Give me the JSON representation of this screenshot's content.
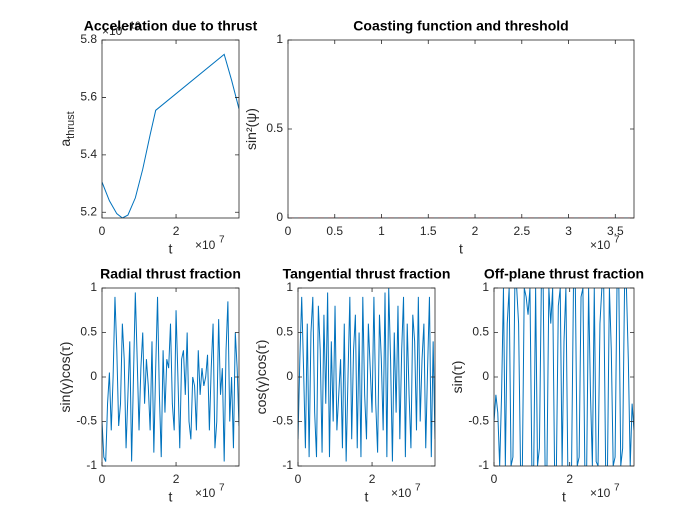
{
  "chart_data": [
    {
      "type": "line",
      "title": "Acceleration due to thrust",
      "xlabel": "t",
      "ylabel": "a",
      "ylabel_subscript": "thrust",
      "x_multiplier": "×10",
      "x_exponent": 7,
      "y_multiplier": "×10",
      "y_exponent": -16,
      "xlim": [
        0,
        3.7
      ],
      "ylim": [
        5.18,
        5.8
      ],
      "xticks": [
        0,
        2
      ],
      "yticks": [
        5.2,
        5.4,
        5.6,
        5.8
      ],
      "x": [
        0,
        0.2,
        0.4,
        0.55,
        0.7,
        0.9,
        1.1,
        1.3,
        1.45,
        3.3,
        3.5,
        3.7
      ],
      "series": [
        {
          "color": "#0072bd",
          "values": [
            5.305,
            5.24,
            5.195,
            5.18,
            5.19,
            5.25,
            5.35,
            5.47,
            5.555,
            5.75,
            5.66,
            5.56
          ]
        }
      ]
    },
    {
      "type": "line",
      "title": "Coasting function and threshold",
      "xlabel": "t",
      "ylabel": "sin²(ψ)",
      "x_multiplier": "×10",
      "x_exponent": 7,
      "xlim": [
        0,
        3.7
      ],
      "ylim": [
        0,
        1
      ],
      "xticks": [
        0,
        0.5,
        1,
        1.5,
        2,
        2.5,
        3,
        3.5
      ],
      "yticks": [
        0,
        0.5,
        1
      ],
      "x": [
        0,
        3.7
      ],
      "series": [
        {
          "color": "#0072bd",
          "style": "solid",
          "values": [
            0,
            0
          ]
        },
        {
          "color": "#ff0000",
          "style": "dashed",
          "values": [
            0,
            0
          ]
        }
      ]
    },
    {
      "type": "line",
      "title": "Radial thrust fraction",
      "xlabel": "t",
      "ylabel": "sin(γ)cos(τ)",
      "x_multiplier": "×10",
      "x_exponent": 7,
      "xlim": [
        0,
        3.7
      ],
      "ylim": [
        -1,
        1
      ],
      "xticks": [
        0,
        2
      ],
      "yticks": [
        -1,
        -0.5,
        0,
        0.5,
        1
      ],
      "x": [
        0,
        0.05,
        0.1,
        0.15,
        0.2,
        0.25,
        0.3,
        0.35,
        0.4,
        0.45,
        0.5,
        0.55,
        0.6,
        0.65,
        0.7,
        0.75,
        0.8,
        0.85,
        0.9,
        0.95,
        1,
        1.05,
        1.1,
        1.15,
        1.2,
        1.25,
        1.3,
        1.35,
        1.4,
        1.45,
        1.5,
        1.55,
        1.6,
        1.65,
        1.7,
        1.75,
        1.8,
        1.85,
        1.9,
        1.95,
        2,
        2.05,
        2.1,
        2.15,
        2.2,
        2.25,
        2.3,
        2.35,
        2.4,
        2.45,
        2.5,
        2.55,
        2.6,
        2.65,
        2.7,
        2.75,
        2.8,
        2.85,
        2.9,
        2.95,
        3,
        3.05,
        3.1,
        3.15,
        3.2,
        3.25,
        3.3,
        3.35,
        3.4,
        3.45,
        3.5,
        3.55,
        3.6,
        3.65,
        3.7
      ],
      "series": [
        {
          "color": "#0072bd",
          "values": [
            -0.5,
            -0.9,
            -0.95,
            -0.3,
            0.05,
            -0.6,
            0.0,
            0.9,
            0.3,
            -0.55,
            -0.3,
            0.6,
            0.2,
            -0.8,
            -0.2,
            0.4,
            -0.95,
            0.0,
            0.95,
            0.2,
            -0.6,
            0.1,
            0.5,
            -0.3,
            0.2,
            -0.1,
            -0.6,
            0.4,
            -0.85,
            0.1,
            0.9,
            -0.2,
            -0.9,
            0.3,
            -0.4,
            0.2,
            0.1,
            0.6,
            -0.3,
            -0.6,
            0.75,
            0.0,
            -0.8,
            0.2,
            0.3,
            -0.2,
            0.5,
            -0.5,
            -0.7,
            0.0,
            -0.1,
            -0.6,
            0.3,
            -0.2,
            0.1,
            -0.1,
            0.0,
            0.25,
            -0.6,
            0.1,
            0.6,
            -0.8,
            -0.5,
            0.65,
            -0.2,
            0.1,
            -0.95,
            0.3,
            0.85,
            -0.5,
            0.0,
            -0.8,
            0.5,
            0.1,
            -0.55
          ]
        }
      ]
    },
    {
      "type": "line",
      "title": "Tangential thrust fraction",
      "xlabel": "t",
      "ylabel": "cos(γ)cos(τ)",
      "x_multiplier": "×10",
      "x_exponent": 7,
      "xlim": [
        0,
        3.7
      ],
      "ylim": [
        -1,
        1
      ],
      "xticks": [
        0,
        2
      ],
      "yticks": [
        -1,
        -0.5,
        0,
        0.5,
        1
      ],
      "x": [
        0,
        0.05,
        0.1,
        0.15,
        0.2,
        0.25,
        0.3,
        0.35,
        0.4,
        0.45,
        0.5,
        0.55,
        0.6,
        0.65,
        0.7,
        0.75,
        0.8,
        0.85,
        0.9,
        0.95,
        1,
        1.05,
        1.1,
        1.15,
        1.2,
        1.25,
        1.3,
        1.35,
        1.4,
        1.45,
        1.5,
        1.55,
        1.6,
        1.65,
        1.7,
        1.75,
        1.8,
        1.85,
        1.9,
        1.95,
        2,
        2.05,
        2.1,
        2.15,
        2.2,
        2.25,
        2.3,
        2.35,
        2.4,
        2.45,
        2.5,
        2.55,
        2.6,
        2.65,
        2.7,
        2.75,
        2.8,
        2.85,
        2.9,
        2.95,
        3,
        3.05,
        3.1,
        3.15,
        3.2,
        3.25,
        3.3,
        3.35,
        3.4,
        3.45,
        3.5,
        3.55,
        3.6,
        3.65,
        3.7
      ],
      "series": [
        {
          "color": "#0072bd",
          "values": [
            -0.7,
            0.2,
            0.9,
            0.1,
            -0.8,
            0.6,
            -0.9,
            0.5,
            0.9,
            -0.4,
            -0.9,
            0.8,
            0.3,
            -0.85,
            0.7,
            -0.3,
            0.95,
            -0.9,
            0.4,
            -0.5,
            0.8,
            -0.6,
            -0.2,
            0.2,
            -0.8,
            0.6,
            -0.95,
            0.0,
            0.9,
            -0.7,
            0.3,
            0.7,
            -0.8,
            0.5,
            -0.9,
            0.9,
            -0.2,
            -0.7,
            0.6,
            0.1,
            -0.4,
            0.9,
            -0.3,
            -0.85,
            0.7,
            0.2,
            -0.6,
            0.95,
            -0.9,
            1.0,
            0.2,
            -0.95,
            0.5,
            -0.4,
            0.8,
            -0.7,
            0.3,
            0.9,
            -0.9,
            0.6,
            -0.2,
            -0.8,
            0.7,
            0.4,
            -0.6,
            0.9,
            -0.5,
            0.2,
            0.6,
            -0.8,
            0.1,
            0.9,
            -0.9,
            0.4,
            -0.7
          ]
        }
      ]
    },
    {
      "type": "line",
      "title": "Off-plane thrust fraction",
      "xlabel": "t",
      "ylabel": "sin(τ)",
      "x_multiplier": "×10",
      "x_exponent": 7,
      "xlim": [
        0,
        3.7
      ],
      "ylim": [
        -1,
        1
      ],
      "xticks": [
        0,
        2
      ],
      "yticks": [
        -1,
        -0.5,
        0,
        0.5,
        1
      ],
      "x": [
        0,
        0.05,
        0.1,
        0.15,
        0.2,
        0.25,
        0.3,
        0.35,
        0.4,
        0.45,
        0.5,
        0.55,
        0.6,
        0.65,
        0.7,
        0.75,
        0.8,
        0.85,
        0.9,
        0.95,
        1,
        1.05,
        1.1,
        1.15,
        1.2,
        1.25,
        1.3,
        1.35,
        1.4,
        1.45,
        1.5,
        1.55,
        1.6,
        1.65,
        1.7,
        1.75,
        1.8,
        1.85,
        1.9,
        1.95,
        2,
        2.05,
        2.1,
        2.15,
        2.2,
        2.25,
        2.3,
        2.35,
        2.4,
        2.45,
        2.5,
        2.55,
        2.6,
        2.65,
        2.7,
        2.75,
        2.8,
        2.85,
        2.9,
        2.95,
        3,
        3.05,
        3.1,
        3.15,
        3.2,
        3.25,
        3.3,
        3.35,
        3.4,
        3.45,
        3.5,
        3.55,
        3.6,
        3.65,
        3.7
      ],
      "series": [
        {
          "color": "#0072bd",
          "values": [
            -0.5,
            -0.2,
            -0.4,
            -1,
            -0.2,
            1,
            -1,
            0.6,
            1,
            -1,
            -0.9,
            1,
            1,
            0.6,
            -1,
            -1,
            1,
            0.9,
            0.7,
            1,
            -1,
            -1,
            1,
            -1,
            -0.8,
            1,
            1,
            -1,
            -1,
            1,
            0.6,
            1,
            -1,
            -1,
            0.8,
            1,
            -1,
            0.4,
            1,
            -1,
            -1,
            -1,
            1,
            1,
            -1,
            -0.9,
            0.9,
            1,
            -1,
            -1,
            1,
            -0.2,
            -1,
            1,
            -0.95,
            -1,
            0.6,
            1,
            1,
            -1,
            -1,
            1,
            0.3,
            -1,
            -0.9,
            1,
            1,
            -1,
            -0.8,
            1,
            1,
            0.2,
            -1,
            -0.3,
            -0.6
          ]
        }
      ]
    }
  ]
}
